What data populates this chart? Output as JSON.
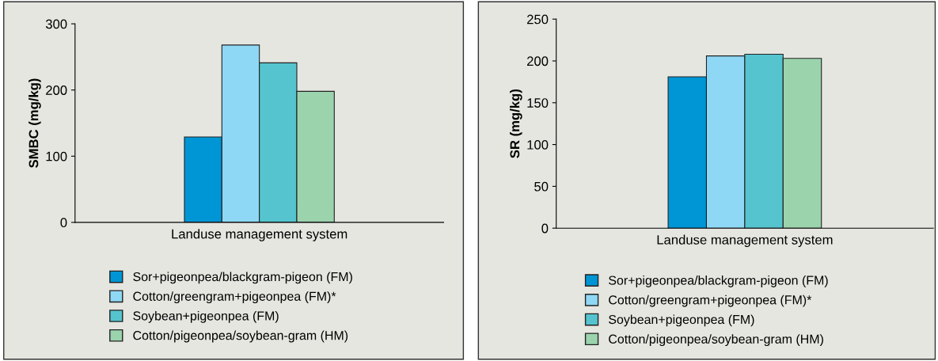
{
  "chart_data": [
    {
      "type": "bar",
      "ylabel": "SMBC (mg/kg)",
      "xlabel": "Landuse management system",
      "categories": [
        null
      ],
      "ylim": [
        0,
        300
      ],
      "yticks": [
        0,
        100,
        200,
        300
      ],
      "legend": "bottom",
      "tick_labels": "y",
      "series": [
        {
          "name": "Sor+pigeonpea/blackgram-pigeon (FM)",
          "color": "#0096d6",
          "values": [
            129
          ]
        },
        {
          "name": "Cotton/greengram+pigeonpea (FM)*",
          "color": "#8fd8f5",
          "values": [
            268
          ]
        },
        {
          "name": "Soybean+pigeonpea (FM)",
          "color": "#55c4cf",
          "values": [
            241
          ]
        },
        {
          "name": "Cotton/pigeonpea/soybean-gram (HM)",
          "color": "#9bd3ad",
          "values": [
            198
          ]
        }
      ]
    },
    {
      "type": "bar",
      "ylabel": "SR (mg/kg)",
      "xlabel": "Landuse management system",
      "categories": [
        null
      ],
      "ylim": [
        0,
        250
      ],
      "yticks": [
        0,
        50,
        100,
        150,
        200,
        250
      ],
      "legend": "bottom",
      "tick_labels": "y",
      "series": [
        {
          "name": "Sor+pigeonpea/blackgram-pigeon (FM)",
          "color": "#0096d6",
          "values": [
            181
          ]
        },
        {
          "name": "Cotton/greengram+pigeonpea (FM)*",
          "color": "#8fd8f5",
          "values": [
            206
          ]
        },
        {
          "name": "Soybean+pigeonpea (FM)",
          "color": "#55c4cf",
          "values": [
            208
          ]
        },
        {
          "name": "Cotton/pigeonpea/soybean-gram (HM)",
          "color": "#9bd3ad",
          "values": [
            203
          ]
        }
      ]
    }
  ]
}
